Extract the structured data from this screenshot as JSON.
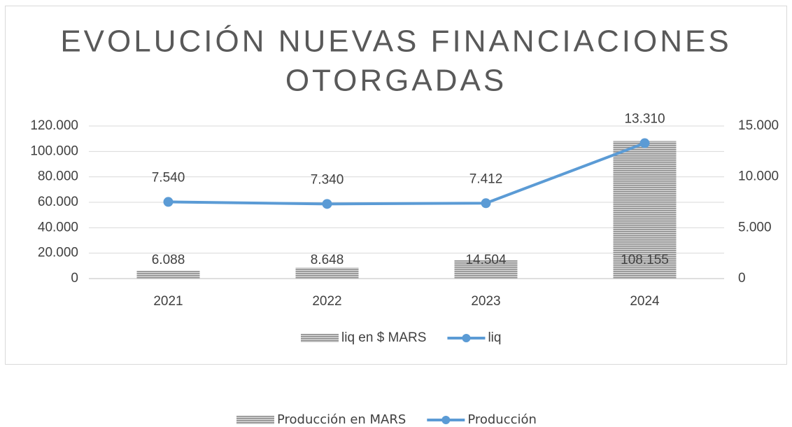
{
  "chart_data": {
    "type": "bar_line",
    "title": [
      "EVOLUCIÓN NUEVAS FINANCIACIONES",
      "OTORGADAS"
    ],
    "categories": [
      "2021",
      "2022",
      "2023",
      "2024"
    ],
    "series": [
      {
        "name": "liq en $ MARS",
        "type": "bar",
        "color": "#a6a6a6",
        "values": [
          6088,
          8648,
          14504,
          108155
        ],
        "value_labels": [
          "6.088",
          "8.648",
          "14.504",
          "108.155"
        ]
      },
      {
        "name": "liq",
        "type": "line",
        "axis": "y2",
        "color": "#5b9bd5",
        "values": [
          7540,
          7340,
          7412,
          13310
        ],
        "value_labels": [
          "7.540",
          "7.340",
          "7.412",
          "13.310"
        ]
      }
    ],
    "ylim": [
      0,
      120000
    ],
    "yticks": [
      0,
      {
        "value": 20000,
        "label": "20.000"
      },
      {
        "value": 40000,
        "label": "40.000"
      },
      {
        "value": 60000,
        "label": "60.000"
      },
      {
        "value": 80000,
        "label": "80.000"
      },
      {
        "value": 100000,
        "label": "100.000"
      },
      {
        "value": 120000,
        "label": "120.000"
      }
    ],
    "y2lim": [
      0,
      15000
    ],
    "y2ticks": [
      0,
      {
        "value": 5000,
        "label": "5.000"
      },
      {
        "value": 10000,
        "label": "10.000"
      },
      {
        "value": 15000,
        "label": "15.000"
      }
    ],
    "grid": true,
    "legend": "bottom"
  },
  "footer_legend": [
    {
      "name": "Producción en MARS",
      "type": "bar",
      "color": "#a6a6a6"
    },
    {
      "name": "Producción",
      "type": "line",
      "color": "#5b9bd5"
    }
  ]
}
